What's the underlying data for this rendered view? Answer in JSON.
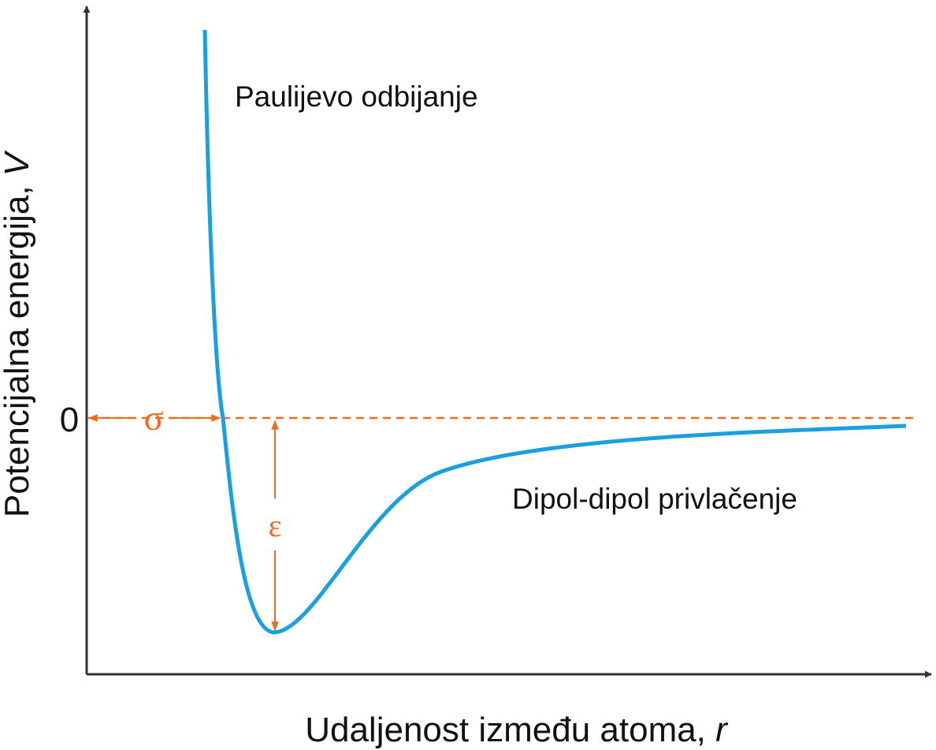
{
  "axes": {
    "y_label": "Potencijalna energija, ",
    "y_symbol": "V",
    "x_label": "Udaljenost između atoma, ",
    "x_symbol": "r",
    "zero": "0"
  },
  "annotations": {
    "repulsion": "Paulijevo odbijanje",
    "attraction": "Dipol-dipol privlačenje",
    "sigma": "σ",
    "epsilon": "ε"
  }
}
